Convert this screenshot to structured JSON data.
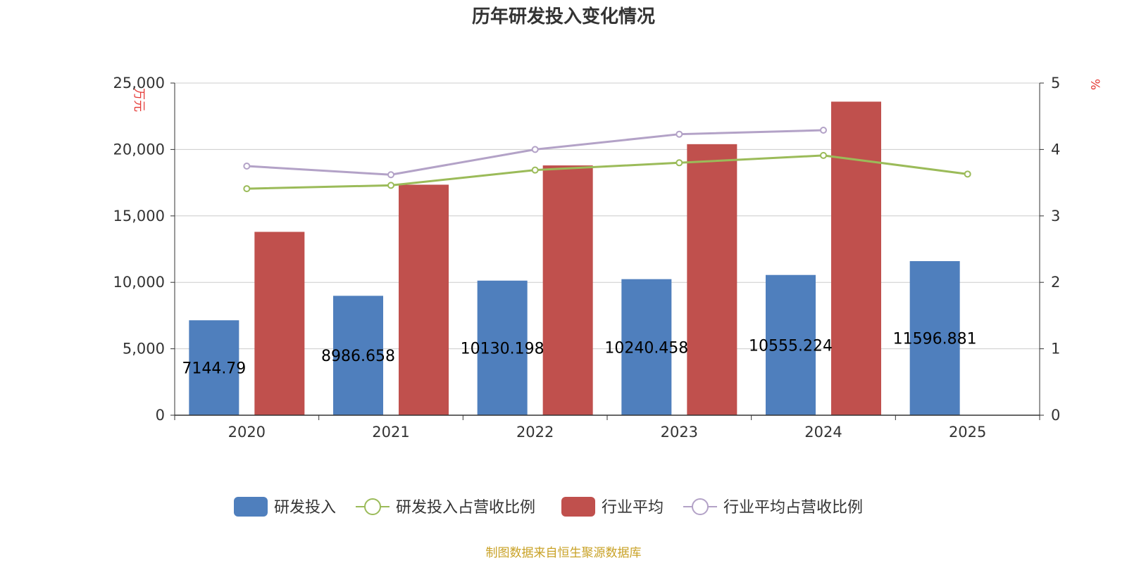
{
  "colors": {
    "rd": "#4f7fbd",
    "industry": "#c0504d",
    "rd_ratio": "#9bbb59",
    "industry_ratio": "#b3a2c7",
    "grid": "#cccccc",
    "axis": "#333333",
    "unit": "#e53935",
    "source": "#c9a227"
  },
  "chart_data": {
    "type": "bar",
    "title": "历年研发投入变化情况",
    "categories": [
      "2020",
      "2021",
      "2022",
      "2023",
      "2024",
      "2025"
    ],
    "y_left": {
      "unit": "万元",
      "ylim": [
        0,
        25000
      ],
      "ticks": [
        0,
        5000,
        10000,
        15000,
        20000,
        25000
      ],
      "tick_labels": [
        "0",
        "5,000",
        "10,000",
        "15,000",
        "20,000",
        "25,000"
      ]
    },
    "y_right": {
      "unit": "%",
      "ylim": [
        0,
        5
      ],
      "ticks": [
        0,
        1,
        2,
        3,
        4,
        5
      ],
      "tick_labels": [
        "0",
        "1",
        "2",
        "3",
        "4",
        "5"
      ]
    },
    "series": [
      {
        "name": "研发投入",
        "type": "bar",
        "axis": "left",
        "values": [
          7144.79,
          8986.658,
          10130.198,
          10240.458,
          10555.224,
          11596.881
        ],
        "labels": [
          "7144.79",
          "8986.658",
          "10130.198",
          "10240.458",
          "10555.224",
          "11596.881"
        ]
      },
      {
        "name": "研发投入占营收比例",
        "type": "line",
        "axis": "right",
        "values": [
          3.41,
          3.46,
          3.69,
          3.8,
          3.91,
          3.63
        ]
      },
      {
        "name": "行业平均",
        "type": "bar",
        "axis": "left",
        "values": [
          13800,
          17350,
          18800,
          20400,
          23600,
          null
        ]
      },
      {
        "name": "行业平均占营收比例",
        "type": "line",
        "axis": "right",
        "values": [
          3.75,
          3.62,
          4.0,
          4.23,
          4.29,
          null
        ]
      }
    ],
    "legend_position": "bottom-center",
    "source": "制图数据来自恒生聚源数据库"
  }
}
